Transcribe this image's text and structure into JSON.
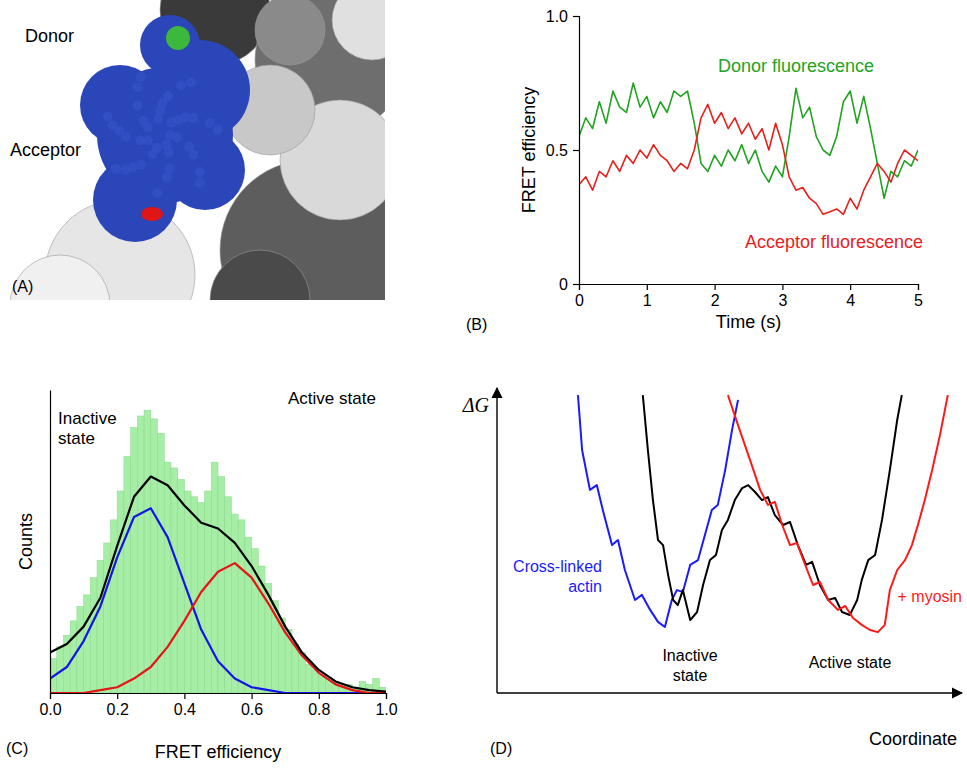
{
  "panel_a": {
    "letter": "(A)",
    "donor": "Donor",
    "acceptor": "Acceptor"
  },
  "chart_data": [
    {
      "type": "line",
      "annotations": [
        {
          "text": "(B)"
        }
      ],
      "x_label": "Time (s)",
      "y_label": "FRET efficiency",
      "x": [
        0,
        0.1,
        0.2,
        0.3,
        0.4,
        0.5,
        0.6,
        0.7,
        0.8,
        0.9,
        1,
        1.1,
        1.2,
        1.3,
        1.4,
        1.5,
        1.6,
        1.7,
        1.8,
        1.9,
        2,
        2.1,
        2.2,
        2.3,
        2.4,
        2.5,
        2.6,
        2.7,
        2.8,
        2.9,
        3,
        3.1,
        3.2,
        3.3,
        3.4,
        3.5,
        3.6,
        3.7,
        3.8,
        3.9,
        4,
        4.1,
        4.2,
        4.3,
        4.4,
        4.5,
        4.6,
        4.7,
        4.8,
        4.9,
        5
      ],
      "series": [
        {
          "name": "Donor fluorescence",
          "color": "#22a322",
          "values": [
            0.55,
            0.62,
            0.58,
            0.68,
            0.6,
            0.72,
            0.66,
            0.64,
            0.75,
            0.66,
            0.7,
            0.62,
            0.68,
            0.64,
            0.72,
            0.7,
            0.72,
            0.6,
            0.45,
            0.42,
            0.48,
            0.44,
            0.5,
            0.46,
            0.52,
            0.45,
            0.5,
            0.42,
            0.38,
            0.44,
            0.4,
            0.55,
            0.73,
            0.62,
            0.66,
            0.55,
            0.5,
            0.48,
            0.55,
            0.68,
            0.72,
            0.6,
            0.7,
            0.58,
            0.45,
            0.32,
            0.42,
            0.4,
            0.46,
            0.44,
            0.5
          ]
        },
        {
          "name": "Acceptor fluorescence",
          "color": "#e8201c",
          "values": [
            0.37,
            0.4,
            0.35,
            0.42,
            0.4,
            0.46,
            0.42,
            0.48,
            0.45,
            0.5,
            0.47,
            0.52,
            0.48,
            0.46,
            0.42,
            0.45,
            0.43,
            0.5,
            0.62,
            0.67,
            0.6,
            0.64,
            0.58,
            0.62,
            0.56,
            0.6,
            0.54,
            0.58,
            0.5,
            0.6,
            0.52,
            0.4,
            0.35,
            0.36,
            0.32,
            0.3,
            0.26,
            0.27,
            0.28,
            0.26,
            0.32,
            0.28,
            0.35,
            0.4,
            0.45,
            0.42,
            0.38,
            0.45,
            0.5,
            0.48,
            0.46
          ]
        }
      ],
      "xlim": [
        0,
        5
      ],
      "ylim": [
        0,
        1
      ],
      "xticks": [
        0,
        1,
        2,
        3,
        4,
        5
      ],
      "yticks": [
        0,
        0.5,
        {
          "value": 1,
          "label": "1.0"
        }
      ]
    },
    {
      "type": "histogram",
      "annotations": [
        {
          "text": "(C)"
        }
      ],
      "x_label": "FRET efficiency",
      "y_label": "Counts",
      "color": "#a6eea6",
      "bins": [
        0,
        0.02,
        0.04,
        0.06,
        0.08,
        0.1,
        0.12,
        0.14,
        0.16,
        0.18,
        0.2,
        0.22,
        0.24,
        0.26,
        0.28,
        0.3,
        0.32,
        0.34,
        0.36,
        0.38,
        0.4,
        0.42,
        0.44,
        0.46,
        0.48,
        0.5,
        0.52,
        0.54,
        0.56,
        0.58,
        0.6,
        0.62,
        0.64,
        0.66,
        0.68,
        0.7,
        0.72,
        0.74,
        0.76,
        0.78,
        0.8,
        0.82,
        0.84,
        0.86,
        0.88,
        0.9,
        0.92,
        0.94,
        0.96,
        0.98,
        1
      ],
      "counts": [
        12,
        16,
        20,
        25,
        30,
        34,
        40,
        46,
        52,
        60,
        70,
        82,
        92,
        96,
        98,
        95,
        90,
        80,
        78,
        74,
        70,
        68,
        66,
        70,
        80,
        75,
        68,
        62,
        60,
        54,
        50,
        44,
        38,
        32,
        26,
        22,
        17,
        14,
        10,
        8,
        6,
        5,
        4,
        3,
        3,
        2,
        4,
        3,
        5,
        2
      ],
      "series": [
        {
          "type": "line",
          "name": "Inactive state",
          "color": "#1414e6",
          "x": [
            0,
            0.05,
            0.1,
            0.15,
            0.2,
            0.25,
            0.3,
            0.35,
            0.4,
            0.45,
            0.5,
            0.55,
            0.6,
            0.65,
            0.7,
            0.75,
            0.8,
            0.85,
            0.9,
            0.95,
            1
          ],
          "values": [
            5,
            9,
            18,
            30,
            47,
            61,
            64,
            54,
            38,
            22,
            11,
            5,
            2,
            1,
            0,
            0,
            0,
            0,
            0,
            0,
            0
          ]
        },
        {
          "type": "line",
          "name": "Active state",
          "color": "#e61414",
          "x": [
            0,
            0.05,
            0.1,
            0.15,
            0.2,
            0.25,
            0.3,
            0.35,
            0.4,
            0.45,
            0.5,
            0.55,
            0.6,
            0.65,
            0.7,
            0.75,
            0.8,
            0.85,
            0.9,
            0.95,
            1
          ],
          "values": [
            0,
            0,
            0,
            1,
            2,
            5,
            9,
            16,
            25,
            35,
            42,
            45,
            40,
            31,
            21,
            13,
            7,
            3,
            1,
            0,
            0
          ]
        },
        {
          "type": "line",
          "color": "#000000",
          "x": [
            0,
            0.05,
            0.1,
            0.15,
            0.2,
            0.25,
            0.3,
            0.35,
            0.4,
            0.45,
            0.5,
            0.55,
            0.6,
            0.65,
            0.7,
            0.75,
            0.8,
            0.85,
            0.9,
            0.95,
            1
          ],
          "values": [
            14,
            17,
            23,
            33,
            51,
            68,
            75,
            72,
            65,
            59,
            57,
            52,
            44,
            34,
            23,
            14,
            8,
            4,
            2,
            1,
            0.5
          ]
        }
      ],
      "xlim": [
        0,
        1
      ],
      "ylim": [
        0,
        105
      ],
      "xticks": [
        {
          "value": 0,
          "label": "0.0"
        },
        0.2,
        0.4,
        0.6,
        0.8,
        {
          "value": 1,
          "label": "1.0"
        }
      ],
      "tick_labels": "x"
    },
    {
      "type": "line",
      "annotations": [
        {
          "text": "(D)"
        },
        {
          "text": "Inactive state"
        },
        {
          "text": "Active state"
        }
      ],
      "x_label": "Coordinate",
      "y_label": "ΔG",
      "series": [
        {
          "name": "Cross-linked actin",
          "color": "#1a1aff",
          "x": [
            1.76,
            1.85,
            2.02,
            2.17,
            2.3,
            2.5,
            2.63,
            2.78,
            3.0,
            3.15,
            3.33,
            3.5,
            3.65,
            3.8,
            3.91,
            4.04,
            4.2,
            4.37,
            4.52,
            4.67,
            4.8,
            4.96,
            5.11,
            5.24
          ],
          "values": [
            9.93,
            8.1,
            6.77,
            6.93,
            6.1,
            4.93,
            5.1,
            4.1,
            3.1,
            3.27,
            2.77,
            2.37,
            2.2,
            3.1,
            3.43,
            3.37,
            4.27,
            4.43,
            5.27,
            6.1,
            6.27,
            7.43,
            8.77,
            9.77
          ]
        },
        {
          "color": "#000000",
          "x": [
            3.17,
            3.28,
            3.39,
            3.5,
            3.61,
            3.72,
            3.83,
            3.93,
            4.04,
            4.2,
            4.35,
            4.48,
            4.63,
            4.76,
            4.89,
            5.02,
            5.17,
            5.33,
            5.46,
            5.61,
            5.76,
            5.89,
            6.04,
            6.22,
            6.37,
            6.54,
            6.72,
            6.85,
            7.02,
            7.2,
            7.35,
            7.5,
            7.67,
            7.83,
            7.93,
            8.07,
            8.22,
            8.37,
            8.54,
            8.7,
            8.8
          ],
          "values": [
            9.93,
            8.1,
            6.43,
            5.1,
            4.93,
            3.93,
            3.1,
            2.93,
            3.43,
            2.43,
            2.7,
            3.6,
            4.43,
            4.6,
            5.43,
            5.77,
            6.43,
            6.83,
            6.93,
            6.7,
            6.43,
            6.53,
            5.93,
            5.6,
            5.7,
            4.93,
            4.27,
            4.37,
            3.6,
            3.1,
            3.17,
            2.7,
            2.6,
            3.1,
            3.77,
            4.43,
            4.6,
            5.77,
            7.43,
            9.1,
            9.93
          ]
        },
        {
          "name": "+ myosin",
          "color": "#ff1a1a",
          "x": [
            5.02,
            5.24,
            5.5,
            5.72,
            5.89,
            6.04,
            6.2,
            6.37,
            6.52,
            6.7,
            6.87,
            7.02,
            7.2,
            7.41,
            7.57,
            7.74,
            7.93,
            8.11,
            8.28,
            8.43,
            8.54,
            8.7,
            8.87,
            9.02,
            9.15,
            9.3,
            9.46,
            9.63,
            9.8
          ],
          "values": [
            9.93,
            8.93,
            7.77,
            6.77,
            6.27,
            6.37,
            5.6,
            4.93,
            5.0,
            4.27,
            3.6,
            3.7,
            3.1,
            2.77,
            2.9,
            2.5,
            2.27,
            2.1,
            2.03,
            2.27,
            3.43,
            4.1,
            4.43,
            4.93,
            5.6,
            6.43,
            7.43,
            8.6,
            9.93
          ]
        }
      ],
      "xlim": [
        0,
        10
      ],
      "ylim": [
        0,
        10
      ],
      "tick_labels": false
    }
  ]
}
